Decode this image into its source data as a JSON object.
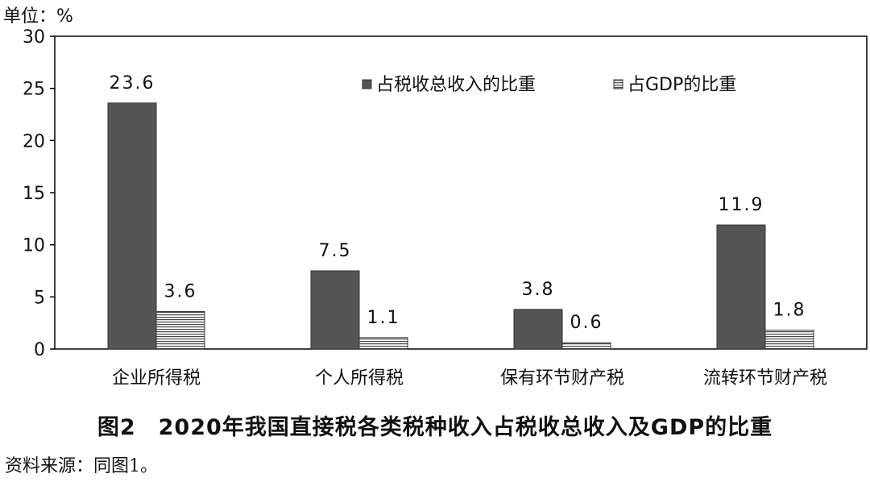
{
  "unit_label": "单位：%",
  "caption": "图2　2020年我国直接税各类税种收入占税收总收入及GDP的比重",
  "source": "资料来源：同图1。",
  "colors": {
    "series_tax_share": "#555555",
    "series_gdp_share": "#ffffff",
    "axis": "#000000"
  },
  "chart_data": {
    "type": "bar",
    "title": "",
    "xlabel": "",
    "ylabel": "",
    "ylim": [
      0,
      30
    ],
    "yticks": [
      0,
      5,
      10,
      15,
      20,
      25,
      30
    ],
    "grid": false,
    "legend_position": "top-right",
    "categories": [
      "企业所得税",
      "个人所得税",
      "保有环节财产税",
      "流转环节财产税"
    ],
    "series": [
      {
        "name": "占税收总收入的比重",
        "values": [
          23.6,
          7.5,
          3.8,
          11.9
        ],
        "labels": [
          "23.6",
          "7.5",
          "3.8",
          "11.9"
        ],
        "pattern": "solid"
      },
      {
        "name": "占GDP的比重",
        "values": [
          3.6,
          1.1,
          0.6,
          1.8
        ],
        "labels": [
          "3.6",
          "1.1",
          "0.6",
          "1.8"
        ],
        "pattern": "horizontal-lines"
      }
    ]
  }
}
